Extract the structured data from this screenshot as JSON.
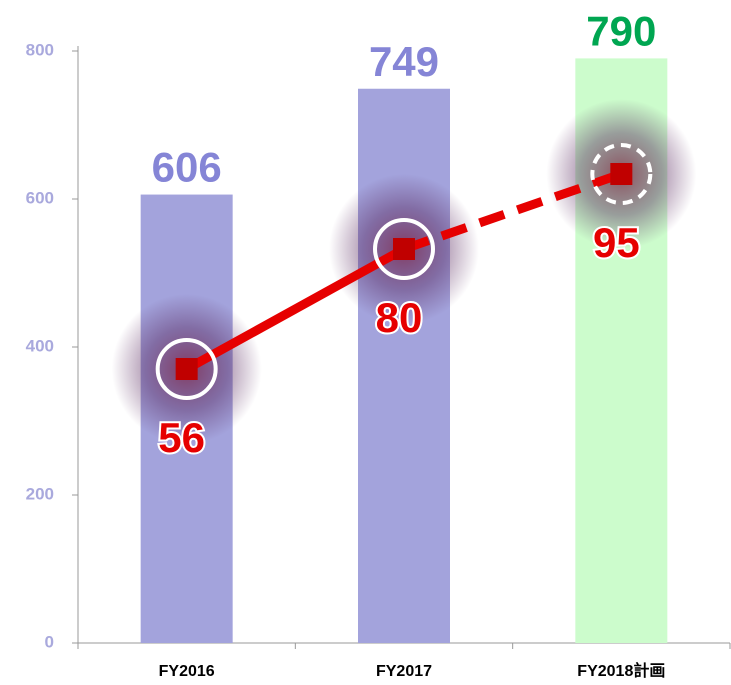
{
  "chart_data": {
    "type": "bar_line",
    "categories": [
      "FY2016",
      "FY2017",
      "FY2018計画"
    ],
    "ylim": [
      0,
      800
    ],
    "yticks": [
      0,
      200,
      400,
      600,
      800
    ],
    "y2lim": [
      1.2,
      119.6
    ],
    "series": [
      {
        "type": "bar",
        "values": [
          606,
          749,
          790
        ],
        "colors": [
          "#a3a3dc",
          "#a3a3dc",
          "#ccfccc"
        ],
        "label_colors": [
          "#8585d6",
          "#8585d6",
          "#00a651"
        ]
      },
      {
        "type": "line",
        "axis": "y2",
        "values": [
          56,
          80,
          95
        ],
        "color": "#e60000",
        "dashed": [
          false,
          false,
          true
        ]
      }
    ]
  }
}
